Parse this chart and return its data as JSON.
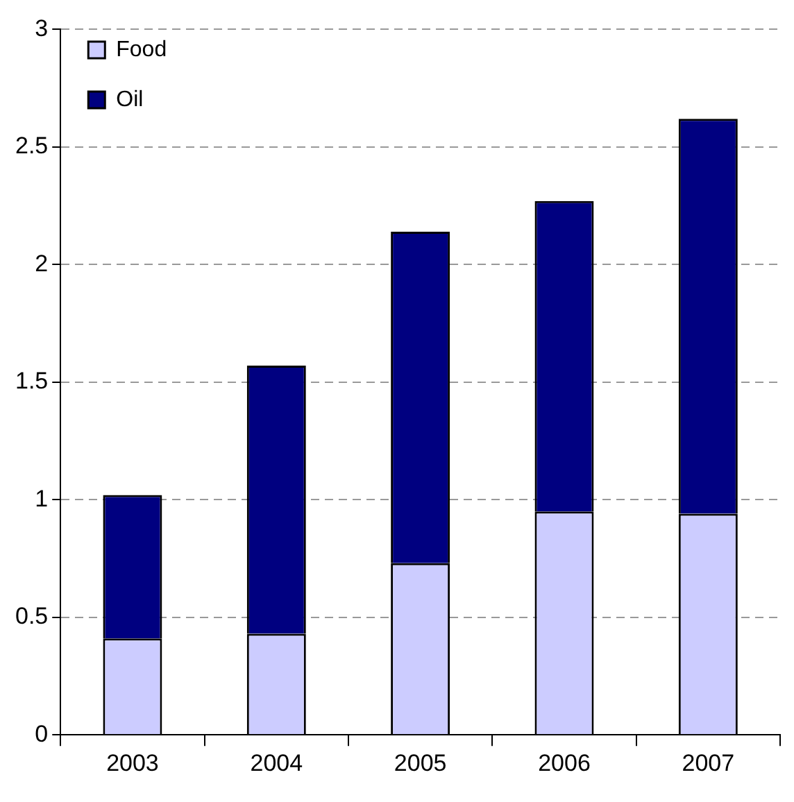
{
  "chart_data": {
    "type": "bar",
    "stacked": true,
    "categories": [
      "2003",
      "2004",
      "2005",
      "2006",
      "2007"
    ],
    "series": [
      {
        "name": "Food",
        "color": "#ccccff",
        "values": [
          0.41,
          0.43,
          0.73,
          0.95,
          0.94
        ]
      },
      {
        "name": "Oil",
        "color": "#000080",
        "values": [
          0.61,
          1.14,
          1.41,
          1.32,
          1.68
        ]
      }
    ],
    "ylim": [
      0,
      3
    ],
    "yticks": [
      0,
      0.5,
      1,
      1.5,
      2,
      2.5,
      3
    ],
    "grid": "y",
    "line_style": "dashed",
    "legend": "top left"
  }
}
